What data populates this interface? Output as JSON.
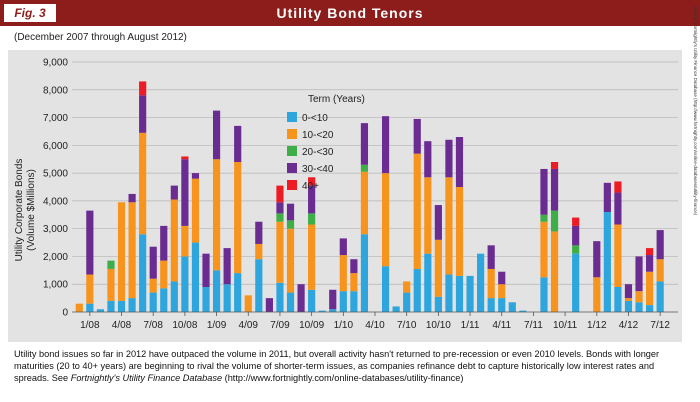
{
  "header": {
    "fig_label": "Fig. 3",
    "title": "Utility Bond Tenors"
  },
  "subtitle": "(December 2007 through August 2012)",
  "source_note": "Source: Fortnightly's Utility Finance Database (http://www.fortnightly.com/online-databases/utility-finance)",
  "caption": {
    "text_before": "Utility bond issues so far in 2012 have outpaced the volume in 2011, but overall activity hasn't returned to pre-recession or even 2010 levels. Bonds with longer maturities (20 to 40+ years) are beginning to rival the volume of shorter-term issues, as companies refinance debt to capture historically low interest rates and spreads. See ",
    "italic": "Fortnightly's Utility Finance Database",
    "text_after": " (http://www.fortnightly.com/online-databases/utility-finance)"
  },
  "colors": {
    "header_bg": "#8c1d1a",
    "panel_bg": "#e3e3e3",
    "series": [
      "#2ea6dd",
      "#f7941d",
      "#3fae49",
      "#6a2c91",
      "#ed1c24"
    ]
  },
  "chart_data": {
    "type": "bar",
    "stacked": true,
    "ylabel": "Utility Corporate Bonds\n(Volume $Millions)",
    "ylim": [
      0,
      9000
    ],
    "yticks": [
      "0",
      "1,000",
      "2,000",
      "3,000",
      "4,000",
      "5,000",
      "6,000",
      "7,000",
      "8,000",
      "9,000"
    ],
    "ytick_values": [
      0,
      1000,
      2000,
      3000,
      4000,
      5000,
      6000,
      7000,
      8000,
      9000
    ],
    "xtick_labels": [
      "1/08",
      "4/08",
      "7/08",
      "10/08",
      "1/09",
      "4/09",
      "7/09",
      "10/09",
      "1/10",
      "4/10",
      "7/10",
      "10/10",
      "1/11",
      "4/11",
      "7/11",
      "10/11",
      "1/12",
      "4/12",
      "7/12"
    ],
    "xtick_indices": [
      1,
      4,
      7,
      10,
      13,
      16,
      19,
      22,
      25,
      28,
      31,
      34,
      37,
      40,
      43,
      46,
      49,
      52,
      55
    ],
    "grid": true,
    "legend": {
      "title": "Term (Years)",
      "position": "upper-center"
    },
    "categories": [
      "12/07",
      "1/08",
      "2/08",
      "3/08",
      "4/08",
      "5/08",
      "6/08",
      "7/08",
      "8/08",
      "9/08",
      "10/08",
      "11/08",
      "12/08",
      "1/09",
      "2/09",
      "3/09",
      "4/09",
      "5/09",
      "6/09",
      "7/09",
      "8/09",
      "9/09",
      "10/09",
      "11/09",
      "12/09",
      "1/10",
      "2/10",
      "3/10",
      "4/10",
      "5/10",
      "6/10",
      "7/10",
      "8/10",
      "9/10",
      "10/10",
      "11/10",
      "12/10",
      "1/11",
      "2/11",
      "3/11",
      "4/11",
      "5/11",
      "6/11",
      "7/11",
      "8/11",
      "9/11",
      "10/11",
      "11/11",
      "12/11",
      "1/12",
      "2/12",
      "3/12",
      "4/12",
      "5/12",
      "6/12",
      "7/12",
      "8/12"
    ],
    "series": [
      {
        "name": "0-<10",
        "values": [
          0,
          300,
          100,
          400,
          400,
          500,
          2800,
          700,
          850,
          1100,
          2000,
          2500,
          900,
          1500,
          1000,
          1400,
          0,
          1900,
          0,
          1050,
          700,
          0,
          800,
          50,
          100,
          750,
          750,
          2800,
          0,
          1650,
          200,
          700,
          1550,
          2100,
          550,
          1350,
          1300,
          1300,
          2100,
          500,
          500,
          350,
          50,
          0,
          1250,
          0,
          0,
          2100,
          0,
          0,
          3600,
          900,
          400,
          350,
          250,
          1100,
          0
        ]
      },
      {
        "name": "10-<20",
        "values": [
          300,
          1050,
          0,
          1150,
          3550,
          3450,
          3650,
          500,
          1000,
          2950,
          1100,
          2300,
          0,
          4000,
          0,
          4000,
          600,
          550,
          0,
          2200,
          2300,
          0,
          2350,
          0,
          0,
          1300,
          650,
          2250,
          0,
          3350,
          0,
          400,
          4150,
          2750,
          2050,
          3500,
          3200,
          0,
          0,
          1050,
          500,
          0,
          0,
          0,
          2000,
          2900,
          0,
          0,
          0,
          1250,
          0,
          2250,
          100,
          400,
          1200,
          800,
          0
        ]
      },
      {
        "name": "20-<30",
        "values": [
          0,
          0,
          0,
          300,
          0,
          0,
          0,
          0,
          0,
          0,
          0,
          0,
          0,
          0,
          0,
          0,
          0,
          0,
          0,
          300,
          300,
          0,
          400,
          0,
          0,
          0,
          0,
          250,
          0,
          0,
          0,
          0,
          0,
          0,
          0,
          0,
          0,
          0,
          0,
          0,
          0,
          0,
          0,
          0,
          250,
          750,
          0,
          300,
          0,
          0,
          0,
          0,
          0,
          0,
          0,
          0,
          0
        ]
      },
      {
        "name": "30-<40",
        "values": [
          0,
          2300,
          0,
          0,
          0,
          300,
          1350,
          1150,
          1250,
          500,
          2400,
          200,
          1200,
          1750,
          1300,
          1300,
          0,
          800,
          500,
          400,
          600,
          1000,
          1000,
          0,
          700,
          600,
          500,
          1500,
          0,
          2050,
          0,
          0,
          1250,
          1300,
          1250,
          1350,
          1800,
          0,
          0,
          850,
          450,
          0,
          0,
          0,
          1650,
          1500,
          0,
          700,
          0,
          1300,
          1050,
          1150,
          500,
          1250,
          600,
          1050,
          0
        ]
      },
      {
        "name": "40+",
        "values": [
          0,
          0,
          0,
          0,
          0,
          0,
          500,
          0,
          0,
          0,
          100,
          0,
          0,
          0,
          0,
          0,
          0,
          0,
          0,
          600,
          0,
          0,
          300,
          0,
          0,
          0,
          0,
          0,
          0,
          0,
          0,
          0,
          0,
          0,
          0,
          0,
          0,
          0,
          0,
          0,
          0,
          0,
          0,
          0,
          0,
          250,
          0,
          300,
          0,
          0,
          0,
          400,
          0,
          0,
          250,
          0,
          0
        ]
      }
    ]
  }
}
